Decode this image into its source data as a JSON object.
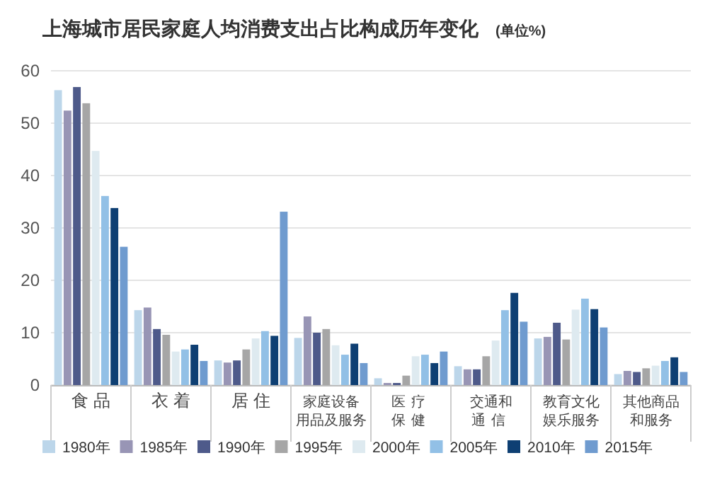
{
  "chart_data": {
    "type": "bar",
    "title": "上海城市居民家庭人均消费支出占比构成历年变化",
    "subtitle": "(单位%)",
    "categories": [
      "食 品",
      "衣 着",
      "居 住",
      "家庭设备用品及服务",
      "医疗保健",
      "交通和通信",
      "教育文化娱乐服务",
      "其他商品和服务"
    ],
    "series": [
      {
        "name": "1980年",
        "color": "#bcd6ea",
        "values": [
          56.3,
          14.3,
          4.7,
          9.0,
          1.3,
          3.6,
          8.9,
          2.1
        ]
      },
      {
        "name": "1985年",
        "color": "#9895b5",
        "values": [
          52.4,
          14.8,
          4.3,
          13.1,
          0.4,
          3.0,
          9.2,
          2.7
        ]
      },
      {
        "name": "1990年",
        "color": "#4e5a8a",
        "values": [
          56.9,
          10.7,
          4.7,
          10.0,
          0.4,
          3.0,
          11.9,
          2.5
        ]
      },
      {
        "name": "1995年",
        "color": "#a6a6a6",
        "values": [
          53.8,
          9.6,
          6.8,
          10.7,
          1.8,
          5.5,
          8.7,
          3.2
        ]
      },
      {
        "name": "2000年",
        "color": "#deeaf0",
        "values": [
          44.7,
          6.4,
          8.9,
          7.6,
          5.5,
          8.5,
          14.4,
          3.7
        ]
      },
      {
        "name": "2005年",
        "color": "#92c0e6",
        "values": [
          36.1,
          6.8,
          10.3,
          5.8,
          5.8,
          14.3,
          16.5,
          4.6
        ]
      },
      {
        "name": "2010年",
        "color": "#0e3f73",
        "values": [
          33.8,
          7.7,
          9.4,
          7.9,
          4.2,
          17.6,
          14.5,
          5.3
        ]
      },
      {
        "name": "2015年",
        "color": "#6f9bcf",
        "values": [
          26.4,
          4.6,
          33.1,
          4.2,
          6.4,
          12.1,
          11.0,
          2.5
        ]
      }
    ],
    "ylim": [
      0,
      60
    ],
    "yticks": [
      0,
      10,
      20,
      30,
      40,
      50,
      60
    ],
    "grid": "y",
    "legend": "bottom"
  }
}
